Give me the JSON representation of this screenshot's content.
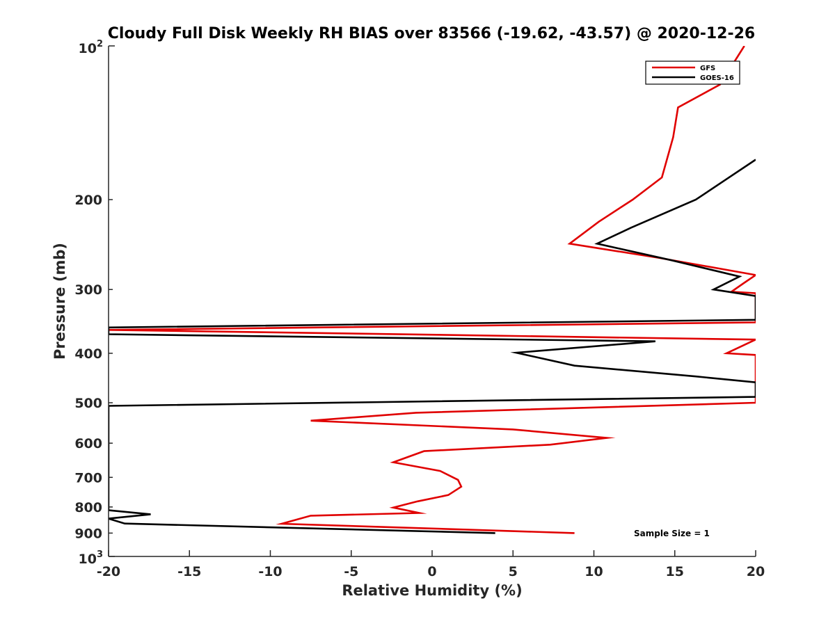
{
  "chart_data": {
    "type": "line",
    "title": "Cloudy Full Disk Weekly RH BIAS over 83566 (-19.62, -43.57) @ 2020-12-26",
    "xlabel": "Relative Humidity (%)",
    "ylabel": "Pressure (mb)",
    "xlim": [
      -20,
      20
    ],
    "ylim": [
      100,
      1000
    ],
    "yscale": "log",
    "y_reversed": true,
    "xticks": [
      -20,
      -15,
      -10,
      -5,
      0,
      5,
      10,
      15,
      20
    ],
    "xtick_labels": [
      "-20",
      "-15",
      "-10",
      "-5",
      "0",
      "5",
      "10",
      "15",
      "20"
    ],
    "yticks": [
      200,
      300,
      400,
      500,
      600,
      700,
      800,
      900
    ],
    "ytick_labels": [
      "200",
      "300",
      "400",
      "500",
      "600",
      "700",
      "800",
      "900"
    ],
    "ytick_top": {
      "base": "10",
      "exp": "2"
    },
    "ytick_bottom": {
      "base": "10",
      "exp": "3"
    },
    "legend_position": "top-right",
    "annotation": "Sample Size = 1",
    "series": [
      {
        "name": "GFS",
        "color": "#e00000",
        "points": [
          [
            19.3,
            100
          ],
          [
            17.8,
            119
          ],
          [
            15.2,
            132
          ],
          [
            14.9,
            151
          ],
          [
            14.2,
            181
          ],
          [
            12.4,
            200
          ],
          [
            10.3,
            221
          ],
          [
            8.5,
            244
          ],
          [
            14,
            260
          ],
          [
            20,
            281
          ],
          [
            19.3,
            291
          ],
          [
            18.5,
            303
          ],
          [
            20,
            305
          ],
          [
            20,
            348
          ],
          [
            -20,
            360
          ],
          [
            20,
            376
          ],
          [
            18.2,
            400
          ],
          [
            20,
            403
          ],
          [
            20,
            500
          ],
          [
            -1,
            523
          ],
          [
            -7.5,
            542
          ],
          [
            5,
            564
          ],
          [
            10.8,
            586
          ],
          [
            7.3,
            604
          ],
          [
            -0.5,
            622
          ],
          [
            -2.4,
            654
          ],
          [
            0.5,
            680
          ],
          [
            1.6,
            708
          ],
          [
            1.8,
            730
          ],
          [
            1.0,
            758
          ],
          [
            -0.9,
            780
          ],
          [
            -2.4,
            802
          ],
          [
            -0.8,
            822
          ],
          [
            -7.5,
            832
          ],
          [
            -9.3,
            863
          ],
          [
            8.8,
            900
          ]
        ]
      },
      {
        "name": "GOES-16",
        "color": "#000000",
        "points": [
          [
            20,
            167
          ],
          [
            16.3,
            200
          ],
          [
            12.3,
            227
          ],
          [
            10.2,
            244
          ],
          [
            14.8,
            263
          ],
          [
            19,
            283
          ],
          [
            17.4,
            300
          ],
          [
            20,
            309
          ],
          [
            20,
            344
          ],
          [
            -20,
            356
          ],
          [
            -20,
            367
          ],
          [
            13.8,
            379
          ],
          [
            5.2,
            399
          ],
          [
            8.8,
            423
          ],
          [
            16.3,
            444
          ],
          [
            20,
            456
          ],
          [
            20,
            487
          ],
          [
            -20,
            507
          ],
          [
            -20,
            812
          ],
          [
            -17.4,
            827
          ],
          [
            -20,
            843
          ],
          [
            -19,
            862
          ],
          [
            3.9,
            900
          ]
        ]
      }
    ]
  }
}
